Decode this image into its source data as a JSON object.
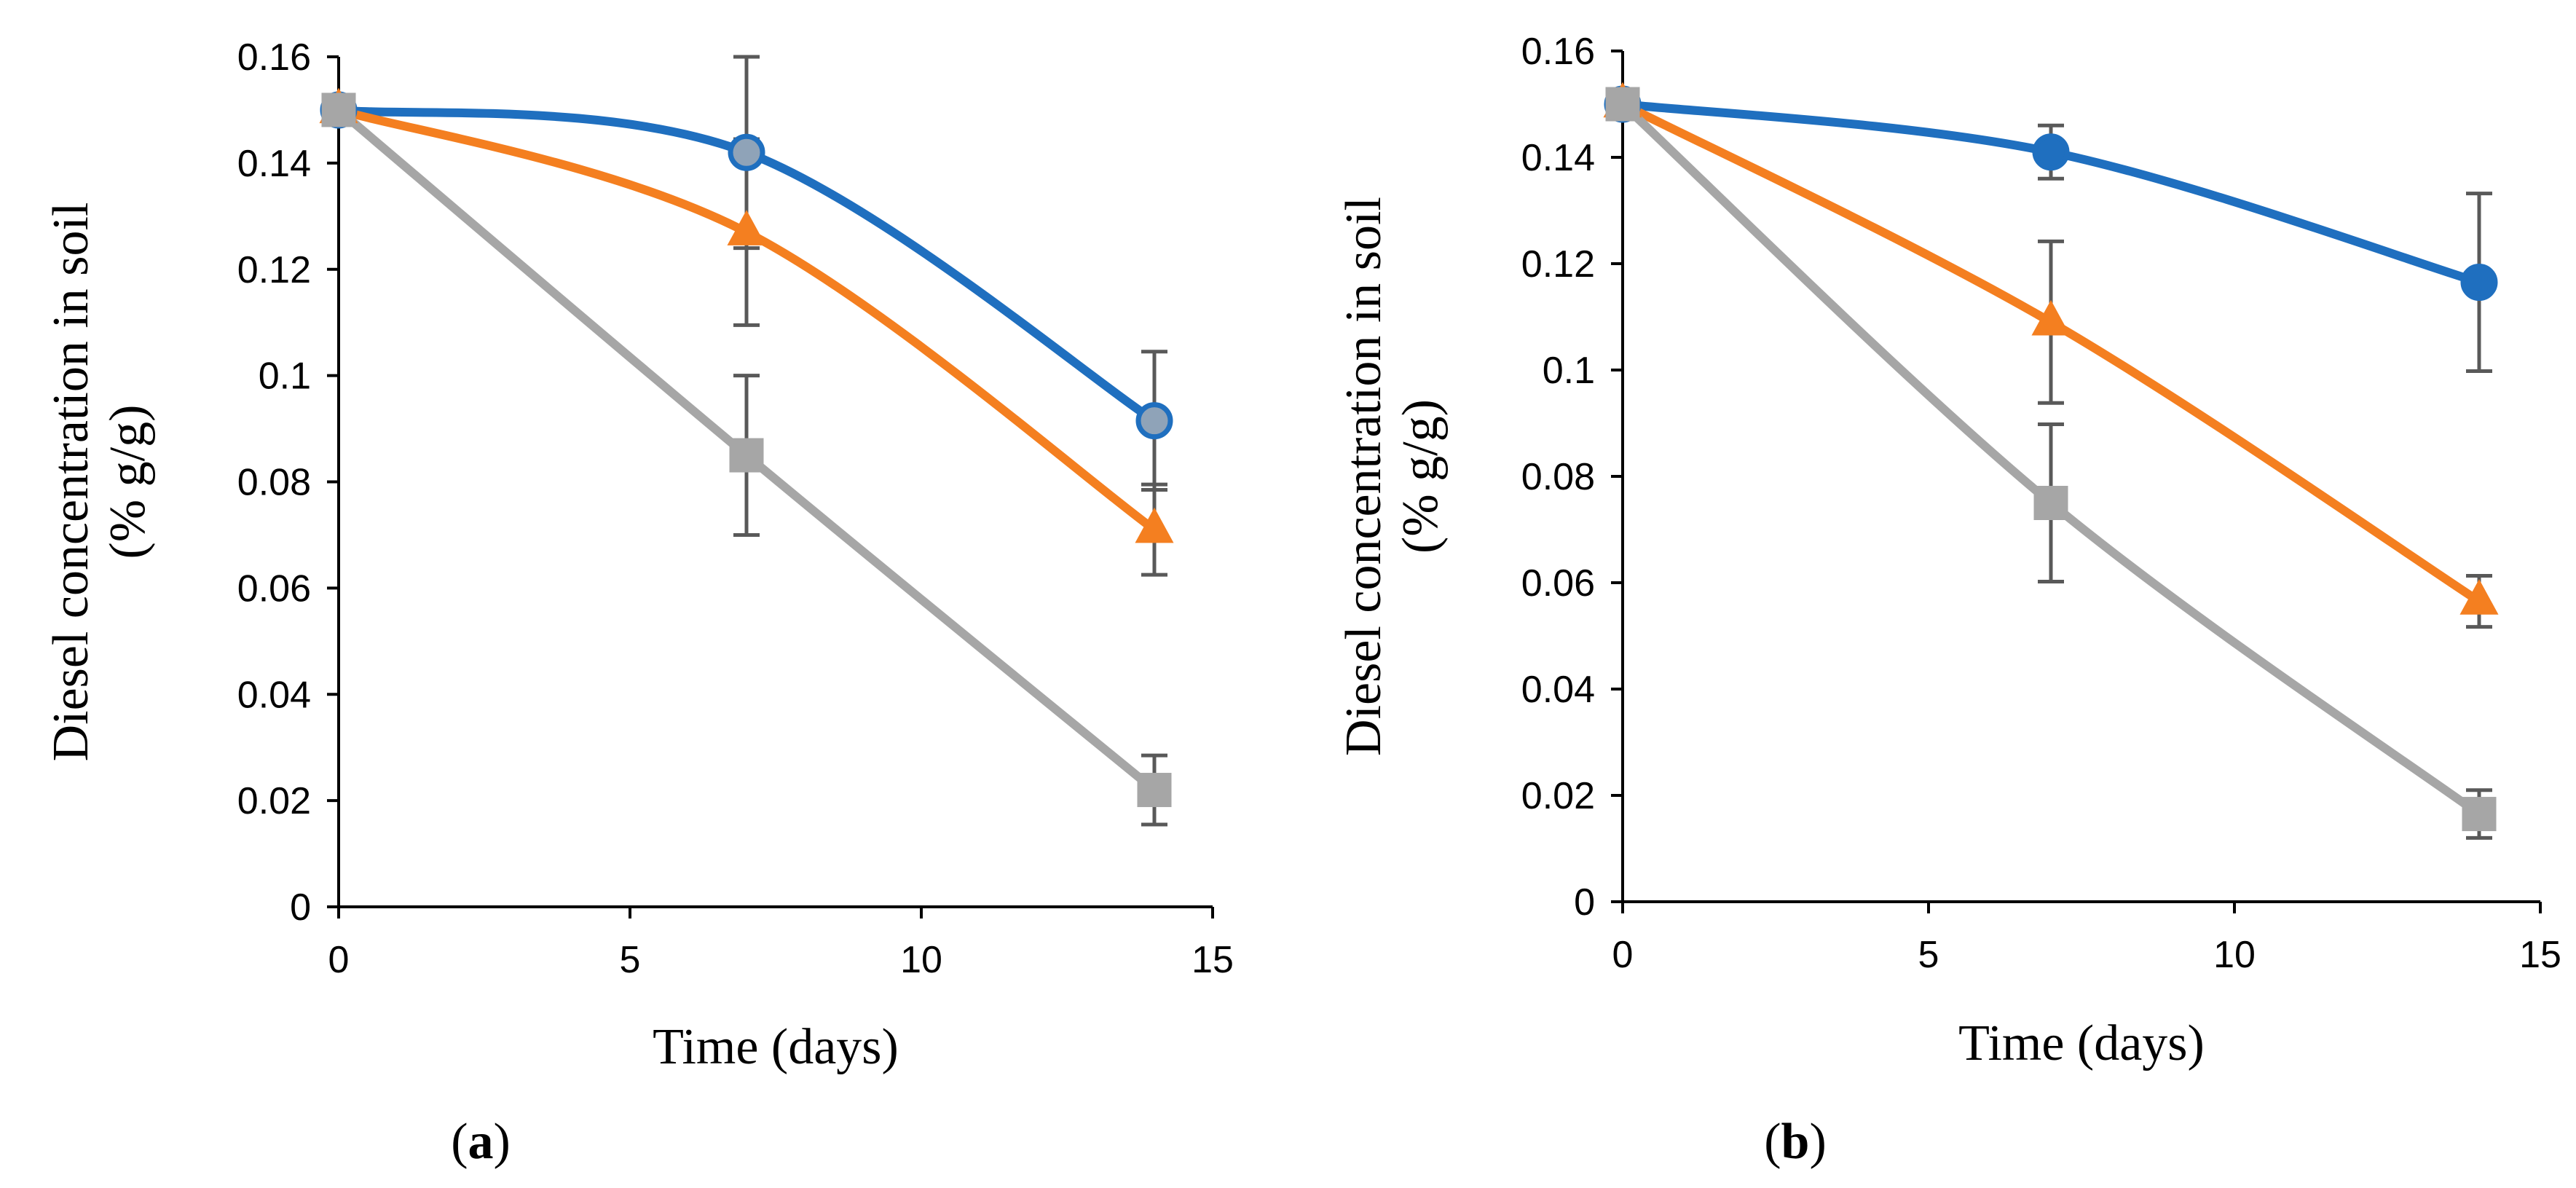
{
  "chart_data": [
    {
      "type": "line",
      "panel_label": "a",
      "xlabel": "Time (days)",
      "ylabel_line1": "Diesel concentration in soil",
      "ylabel_line2": "(% g/g)",
      "xlim": [
        0,
        15
      ],
      "ylim": [
        0,
        0.16
      ],
      "x_ticks": [
        0,
        5,
        10,
        15
      ],
      "y_ticks": [
        0,
        0.02,
        0.04,
        0.06,
        0.08,
        0.1,
        0.12,
        0.14,
        0.16
      ],
      "x_tick_labels": [
        "0",
        "5",
        "10",
        "15"
      ],
      "y_tick_labels": [
        "0",
        "0.02",
        "0.04",
        "0.06",
        "0.08",
        "0.1",
        "0.12",
        "0.14",
        "0.16"
      ],
      "x": [
        0,
        7,
        14
      ],
      "series": [
        {
          "name": "blue",
          "color": "#1F6FBF",
          "marker_fill": "#8FA3B8",
          "marker": "circle",
          "values": [
            0.15,
            0.142,
            0.0915
          ],
          "errors": [
            0,
            0.018,
            0.013
          ]
        },
        {
          "name": "orange",
          "color": "#F47F20",
          "marker_fill": "#F47F20",
          "marker": "triangle",
          "values": [
            0.15,
            0.127,
            0.071
          ],
          "errors": [
            0,
            0.0175,
            0.0085
          ]
        },
        {
          "name": "gray",
          "color": "#A6A6A6",
          "marker_fill": "#A6A6A6",
          "marker": "square",
          "values": [
            0.15,
            0.085,
            0.022
          ],
          "errors": [
            0,
            0.015,
            0.0065
          ]
        }
      ]
    },
    {
      "type": "line",
      "panel_label": "b",
      "xlabel": "Time (days)",
      "ylabel_line1": "Diesel concentration in soil",
      "ylabel_line2": "(% g/g)",
      "xlim": [
        0,
        15
      ],
      "ylim": [
        0,
        0.16
      ],
      "x_ticks": [
        0,
        5,
        10,
        15
      ],
      "y_ticks": [
        0,
        0.02,
        0.04,
        0.06,
        0.08,
        0.1,
        0.12,
        0.14,
        0.16
      ],
      "x_tick_labels": [
        "0",
        "5",
        "10",
        "15"
      ],
      "y_tick_labels": [
        "0",
        "0.02",
        "0.04",
        "0.06",
        "0.08",
        "0.1",
        "0.12",
        "0.14",
        "0.16"
      ],
      "x": [
        0,
        7,
        14
      ],
      "series": [
        {
          "name": "blue",
          "color": "#1F6FBF",
          "marker_fill": "#1F6FBF",
          "marker": "circle",
          "values": [
            0.15,
            0.141,
            0.1165
          ],
          "errors": [
            0,
            0.005,
            0.0167
          ]
        },
        {
          "name": "orange",
          "color": "#F47F20",
          "marker_fill": "#F47F20",
          "marker": "triangle",
          "values": [
            0.15,
            0.109,
            0.0565
          ],
          "errors": [
            0,
            0.0152,
            0.0048
          ]
        },
        {
          "name": "gray",
          "color": "#A6A6A6",
          "marker_fill": "#A6A6A6",
          "marker": "square",
          "values": [
            0.15,
            0.075,
            0.0165
          ],
          "errors": [
            0,
            0.0148,
            0.0045
          ]
        }
      ]
    }
  ]
}
